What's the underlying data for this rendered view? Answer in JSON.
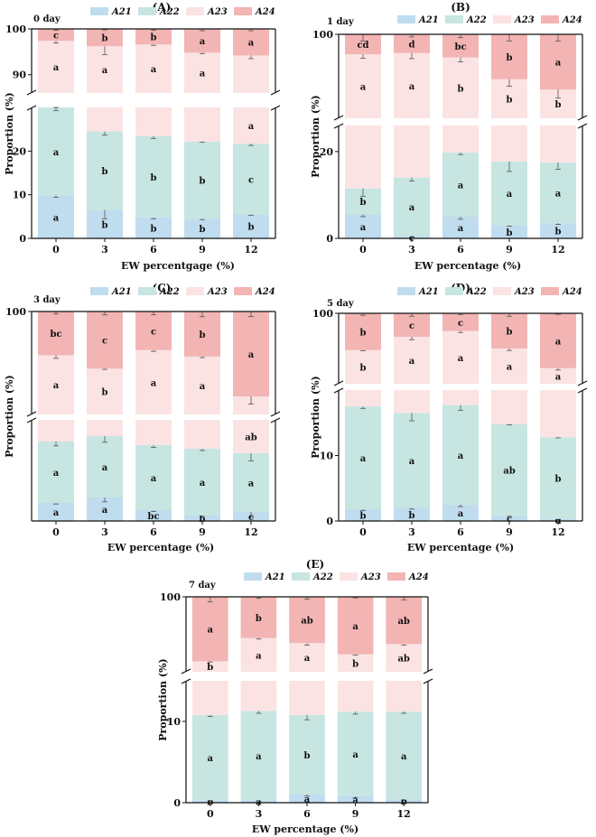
{
  "colors": {
    "A21": "#c0dcef",
    "A22": "#c7e5e1",
    "A23": "#fbe3e3",
    "A24": "#f3b4b4",
    "axis": "#111111",
    "error": "#555555"
  },
  "chart_data": [
    {
      "type": "bar",
      "stacked": true,
      "panel": "(A)",
      "day": "0 day",
      "xlabel": "EW percentgage (%)",
      "ylabel": "Proportion (%)",
      "categories": [
        "0",
        "3",
        "6",
        "9",
        "12"
      ],
      "legend": [
        "A21",
        "A22",
        "A23",
        "A24"
      ],
      "axis_break": {
        "lower": [
          0,
          30
        ],
        "upper": [
          86,
          100
        ]
      },
      "yticks_lower": [
        "0",
        "10",
        "20"
      ],
      "yticks_upper": [
        "90",
        "100"
      ],
      "series": [
        {
          "name": "A21",
          "values": [
            9.8,
            6.5,
            4.8,
            4.5,
            5.5
          ],
          "err": [
            0.4,
            2.0,
            0.3,
            0.2,
            0.2
          ],
          "letters": [
            "a",
            "b",
            "b",
            "b",
            "b"
          ]
        },
        {
          "name": "A22",
          "values": [
            20.2,
            18.0,
            18.6,
            17.7,
            16.2
          ],
          "err": [
            0.7,
            0.8,
            0.5,
            0.2,
            0.4
          ],
          "letters": [
            "a",
            "b",
            "b",
            "b",
            "c"
          ]
        },
        {
          "name": "A23",
          "values": [
            67.4,
            71.7,
            73.2,
            72.6,
            72.5
          ],
          "err": [
            0.5,
            1.8,
            0.2,
            0.2,
            0.7
          ],
          "letters": [
            "a",
            "a",
            "a",
            "a",
            "a"
          ]
        },
        {
          "name": "A24",
          "values": [
            2.6,
            3.8,
            3.4,
            5.2,
            5.8
          ],
          "err": [
            0.3,
            0.2,
            0.3,
            0.4,
            0.4
          ],
          "letters": [
            "c",
            "b",
            "b",
            "a",
            "a"
          ]
        }
      ]
    },
    {
      "type": "bar",
      "stacked": true,
      "panel": "(B)",
      "day": "1 day",
      "xlabel": "EW percentage (%)",
      "ylabel": "Proportion (%)",
      "categories": [
        "0",
        "3",
        "6",
        "9",
        "12"
      ],
      "legend": [
        "A21",
        "A22",
        "A23",
        "A24"
      ],
      "axis_break": {
        "lower": [
          0,
          26
        ],
        "upper": [
          62,
          100
        ]
      },
      "yticks_lower": [
        "0",
        "20"
      ],
      "yticks_upper": [
        "100"
      ],
      "series": [
        {
          "name": "A21",
          "values": [
            5.5,
            0.5,
            5.0,
            3.0,
            3.5
          ],
          "err": [
            0.5,
            0.2,
            0.6,
            0.2,
            0.3
          ],
          "letters": [
            "a",
            "c",
            "a",
            "b",
            "b"
          ]
        },
        {
          "name": "A22",
          "values": [
            6.0,
            13.5,
            14.8,
            14.7,
            14.0
          ],
          "err": [
            1.8,
            0.8,
            0.5,
            2.3,
            1.6
          ],
          "letters": [
            "b",
            "a",
            "a",
            "a",
            "a"
          ]
        },
        {
          "name": "A23",
          "values": [
            79.5,
            77.5,
            69.7,
            62.0,
            57.5
          ],
          "err": [
            1.9,
            2.5,
            2.0,
            3.2,
            3.8
          ],
          "letters": [
            "a",
            "a",
            "b",
            "b",
            "b"
          ]
        },
        {
          "name": "A24",
          "values": [
            9.0,
            8.5,
            10.5,
            20.3,
            25.0
          ],
          "err": [
            3.0,
            1.2,
            1.5,
            3.0,
            3.0
          ],
          "letters": [
            "cd",
            "d",
            "bc",
            "b",
            "a"
          ]
        }
      ]
    },
    {
      "type": "bar",
      "stacked": true,
      "panel": "(C)",
      "day": "3 day",
      "xlabel": "EW percentage (%)",
      "ylabel": "Proportion (%)",
      "categories": [
        "0",
        "3",
        "6",
        "9",
        "12"
      ],
      "legend": [
        "A21",
        "A22",
        "A23",
        "A24"
      ],
      "axis_break": {
        "lower": [
          0,
          28
        ],
        "upper": [
          60,
          100
        ]
      },
      "yticks_lower": [],
      "yticks_upper": [
        "100"
      ],
      "series": [
        {
          "name": "A21",
          "values": [
            5.0,
            6.5,
            3.0,
            1.5,
            2.5
          ],
          "err": [
            0.3,
            1.2,
            0.4,
            0.2,
            1.5
          ],
          "letters": [
            "a",
            "a",
            "bc",
            "b",
            "c"
          ]
        },
        {
          "name": "A22",
          "values": [
            17.0,
            17.0,
            18.0,
            18.5,
            16.3
          ],
          "err": [
            1.2,
            1.7,
            0.6,
            0.5,
            2.2
          ],
          "letters": [
            "a",
            "a",
            "a",
            "a",
            "a"
          ]
        },
        {
          "name": "A23",
          "values": [
            61.0,
            54.3,
            64.0,
            62.5,
            48.2
          ],
          "err": [
            1.2,
            0.3,
            0.5,
            0.4,
            3.0
          ],
          "letters": [
            "a",
            "b",
            "a",
            "a",
            "ab"
          ]
        },
        {
          "name": "A24",
          "values": [
            17.0,
            22.2,
            15.0,
            17.5,
            33.0
          ],
          "err": [
            1.0,
            1.3,
            1.3,
            2.0,
            2.0
          ],
          "letters": [
            "bc",
            "c",
            "c",
            "b",
            "a"
          ]
        }
      ]
    },
    {
      "type": "bar",
      "stacked": true,
      "panel": "(D)",
      "day": "5 day",
      "xlabel": "EW percentage (%)",
      "ylabel": "Proportion (%)",
      "categories": [
        "0",
        "3",
        "6",
        "9",
        "12"
      ],
      "legend": [
        "A21",
        "A22",
        "A23",
        "A24"
      ],
      "axis_break": {
        "lower": [
          0,
          20
        ],
        "upper": [
          64,
          100
        ]
      },
      "yticks_lower": [
        "0",
        "10"
      ],
      "yticks_upper": [
        "100"
      ],
      "series": [
        {
          "name": "A21",
          "values": [
            1.8,
            2.0,
            2.5,
            0.8,
            0.3
          ],
          "err": [
            0.2,
            0.2,
            0.3,
            0.1,
            0.1
          ],
          "letters": [
            "b",
            "b",
            "a",
            "c",
            "d"
          ]
        },
        {
          "name": "A22",
          "values": [
            15.7,
            14.5,
            15.2,
            14.0,
            12.5
          ],
          "err": [
            0.3,
            1.2,
            0.8,
            0.1,
            0.1
          ],
          "letters": [
            "a",
            "a",
            "a",
            "ab",
            "b"
          ]
        },
        {
          "name": "A23",
          "values": [
            63.7,
            71.5,
            73.3,
            67.2,
            59.2
          ],
          "err": [
            0.3,
            1.5,
            0.8,
            1.0,
            1.0
          ],
          "letters": [
            "b",
            "a",
            "a",
            "a",
            "a"
          ]
        },
        {
          "name": "A24",
          "values": [
            18.8,
            12.0,
            9.0,
            18.0,
            28.0
          ],
          "err": [
            1.0,
            1.5,
            0.6,
            1.5,
            0.5
          ],
          "letters": [
            "b",
            "c",
            "c",
            "b",
            "a"
          ]
        }
      ]
    },
    {
      "type": "bar",
      "stacked": true,
      "panel": "(E)",
      "day": "7 day",
      "xlabel": "EW percentage (%)",
      "ylabel": "Proportion (%)",
      "categories": [
        "0",
        "3",
        "6",
        "9",
        "12"
      ],
      "legend": [
        "A21",
        "A22",
        "A23",
        "A24"
      ],
      "axis_break": {
        "lower": [
          0,
          15
        ],
        "upper": [
          70,
          100
        ]
      },
      "yticks_lower": [
        "0",
        "10"
      ],
      "yticks_upper": [
        "100"
      ],
      "series": [
        {
          "name": "A21",
          "values": [
            0.3,
            0.3,
            1.0,
            0.8,
            0.4
          ],
          "err": [
            0.1,
            0.1,
            0.2,
            0.2,
            0.1
          ],
          "letters": [
            "b",
            "a",
            "a",
            "a",
            "b"
          ]
        },
        {
          "name": "A22",
          "values": [
            10.5,
            11.0,
            9.8,
            10.4,
            10.8
          ],
          "err": [
            0.2,
            0.3,
            0.6,
            0.3,
            0.2
          ],
          "letters": [
            "a",
            "a",
            "b",
            "a",
            "a"
          ]
        },
        {
          "name": "A23",
          "values": [
            63.4,
            72.2,
            70.7,
            65.8,
            69.9
          ],
          "err": [
            0.3,
            0.4,
            0.8,
            0.3,
            0.4
          ],
          "letters": [
            "b",
            "a",
            "a",
            "b",
            "ab"
          ]
        },
        {
          "name": "A24",
          "values": [
            25.8,
            16.5,
            18.5,
            23.0,
            19.0
          ],
          "err": [
            2.0,
            0.6,
            1.0,
            0.4,
            1.3
          ],
          "letters": [
            "a",
            "b",
            "ab",
            "a",
            "ab"
          ]
        }
      ]
    }
  ]
}
